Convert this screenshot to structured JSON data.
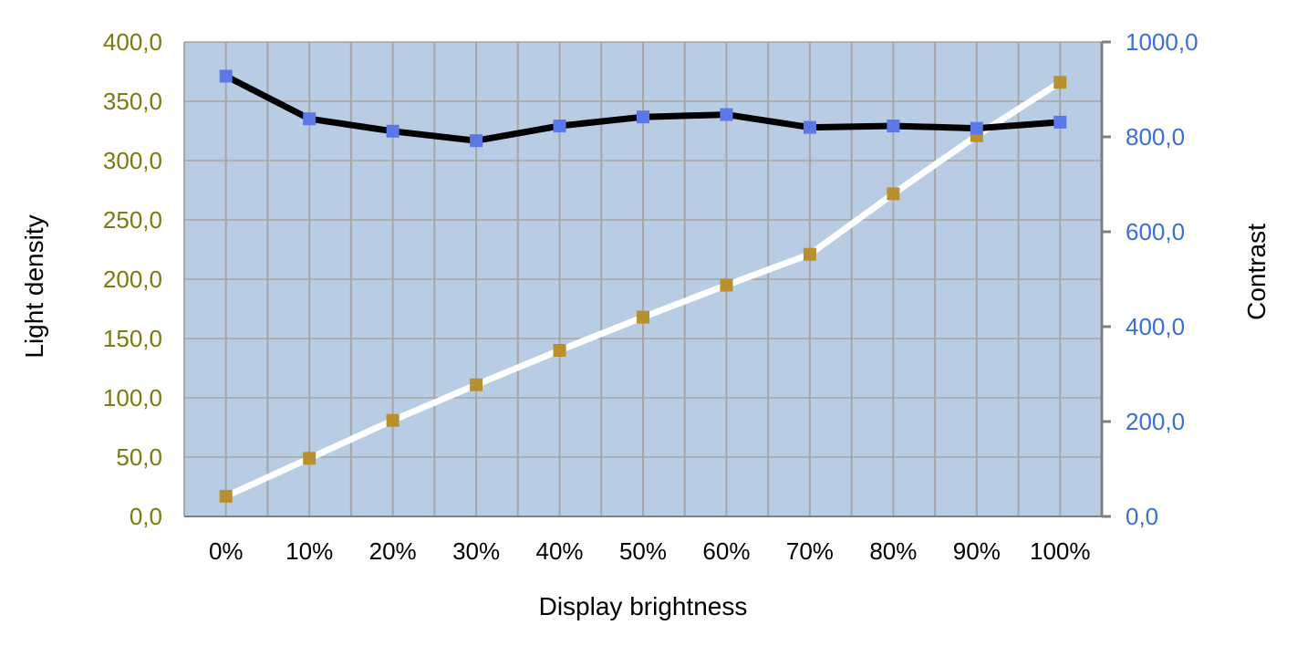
{
  "chart_data": {
    "type": "line",
    "title": "",
    "xlabel": "Display brightness",
    "ylabel_left": "Light density",
    "ylabel_right": "Contrast",
    "categories": [
      "0%",
      "10%",
      "20%",
      "30%",
      "40%",
      "50%",
      "60%",
      "70%",
      "80%",
      "90%",
      "100%"
    ],
    "y_left": {
      "lim": [
        0,
        400
      ],
      "ticks": [
        0,
        50,
        100,
        150,
        200,
        250,
        300,
        350,
        400
      ],
      "tick_labels": [
        "0,0",
        "50,0",
        "100,0",
        "150,0",
        "200,0",
        "250,0",
        "300,0",
        "350,0",
        "400,0"
      ]
    },
    "y_right": {
      "lim": [
        0,
        1000
      ],
      "ticks": [
        0,
        200,
        400,
        600,
        800,
        1000
      ],
      "tick_labels": [
        "0,0",
        "200,0",
        "400,0",
        "600,0",
        "800,0",
        "1000,0"
      ]
    },
    "series": [
      {
        "axis": "left",
        "values": [
          17,
          49,
          81,
          111,
          140,
          168,
          195,
          221,
          272,
          321,
          366
        ],
        "line_color": "#ffffff",
        "marker_color": "#b8902e"
      },
      {
        "axis": "right",
        "values": [
          928,
          838,
          812,
          792,
          823,
          842,
          847,
          820,
          823,
          818,
          831
        ],
        "line_color": "#000000",
        "marker_color": "#5b78e8"
      }
    ],
    "grid": true,
    "legend": "none",
    "colors": {
      "plot_background": "#b8cce4",
      "gridline": "#a6a6a6",
      "left_axis_text": "#7a7a10",
      "right_axis_text": "#3b6fd1"
    }
  }
}
